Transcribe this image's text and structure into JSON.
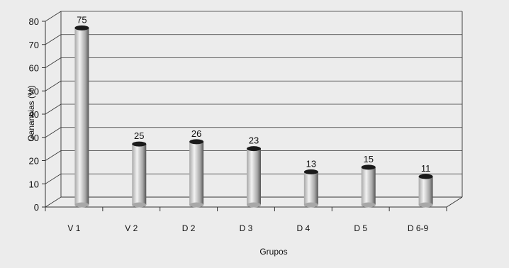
{
  "chart_data": {
    "type": "bar",
    "style": "3d-cylinder",
    "categories": [
      "V 1",
      "V 2",
      "D 2",
      "D 3",
      "D 4",
      "D 5",
      "D 6-9"
    ],
    "values": [
      75,
      25,
      26,
      23,
      13,
      15,
      11
    ],
    "data_labels": [
      "75",
      "25",
      "26",
      "23",
      "13",
      "15",
      "11"
    ],
    "xlabel": "Grupos",
    "ylabel": "Ganancias (%)",
    "ylim": [
      0,
      80
    ],
    "yticks": [
      0,
      10,
      20,
      30,
      40,
      50,
      60,
      70,
      80
    ],
    "grid": true,
    "legend": "none",
    "colors": {
      "background": "#ececec",
      "bar_light": "#f2f2f2",
      "bar_mid": "#a8a8a8",
      "bar_dark": "#555555",
      "bar_top": "#1a1a1a",
      "grid": "#333333"
    }
  }
}
